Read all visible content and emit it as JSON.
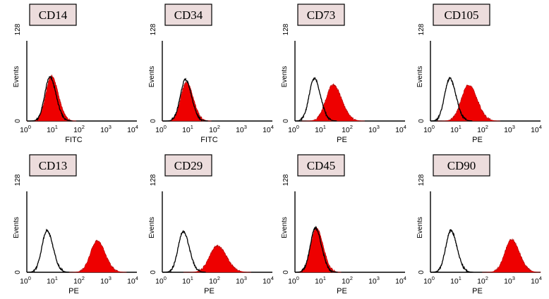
{
  "chart_data": {
    "type": "flow-cytometry-histogram",
    "y_label": "Events",
    "y_ticks": [
      "0",
      "128"
    ],
    "ylim": [
      0,
      128
    ],
    "x_scale": "log10",
    "xlim": [
      1,
      10000
    ],
    "x_tick_bases": [
      "10",
      "10",
      "10",
      "10",
      "10"
    ],
    "x_tick_exps": [
      "0",
      "1",
      "2",
      "3",
      "4"
    ],
    "colors": {
      "stained": "#ee0000",
      "control": "#000000",
      "tag_fill": "#ecdcdc"
    },
    "panels": [
      {
        "marker": "CD14",
        "channel": "FITC",
        "control_peak_log": 0.86,
        "control_height": 70,
        "stained_peak_log": 0.92,
        "stained_height": 72,
        "stained_width": 0.22,
        "result": "negative"
      },
      {
        "marker": "CD34",
        "channel": "FITC",
        "control_peak_log": 0.86,
        "control_height": 66,
        "stained_peak_log": 0.9,
        "stained_height": 62,
        "stained_width": 0.22,
        "result": "negative"
      },
      {
        "marker": "CD73",
        "channel": "PE",
        "control_peak_log": 0.72,
        "control_height": 68,
        "stained_peak_log": 1.42,
        "stained_height": 58,
        "stained_width": 0.28,
        "result": "positive"
      },
      {
        "marker": "CD105",
        "channel": "PE",
        "control_peak_log": 0.72,
        "control_height": 68,
        "stained_peak_log": 1.42,
        "stained_height": 58,
        "stained_width": 0.28,
        "result": "positive"
      },
      {
        "marker": "CD13",
        "channel": "PE",
        "control_peak_log": 0.75,
        "control_height": 66,
        "stained_peak_log": 2.62,
        "stained_height": 50,
        "stained_width": 0.26,
        "result": "positive"
      },
      {
        "marker": "CD29",
        "channel": "PE",
        "control_peak_log": 0.78,
        "control_height": 64,
        "stained_peak_log": 2.05,
        "stained_height": 42,
        "stained_width": 0.3,
        "result": "positive"
      },
      {
        "marker": "CD45",
        "channel": "PE",
        "control_peak_log": 0.76,
        "control_height": 70,
        "stained_peak_log": 0.8,
        "stained_height": 70,
        "stained_width": 0.22,
        "result": "negative"
      },
      {
        "marker": "CD90",
        "channel": "PE",
        "control_peak_log": 0.76,
        "control_height": 66,
        "stained_peak_log": 3.02,
        "stained_height": 52,
        "stained_width": 0.26,
        "result": "positive"
      }
    ]
  }
}
